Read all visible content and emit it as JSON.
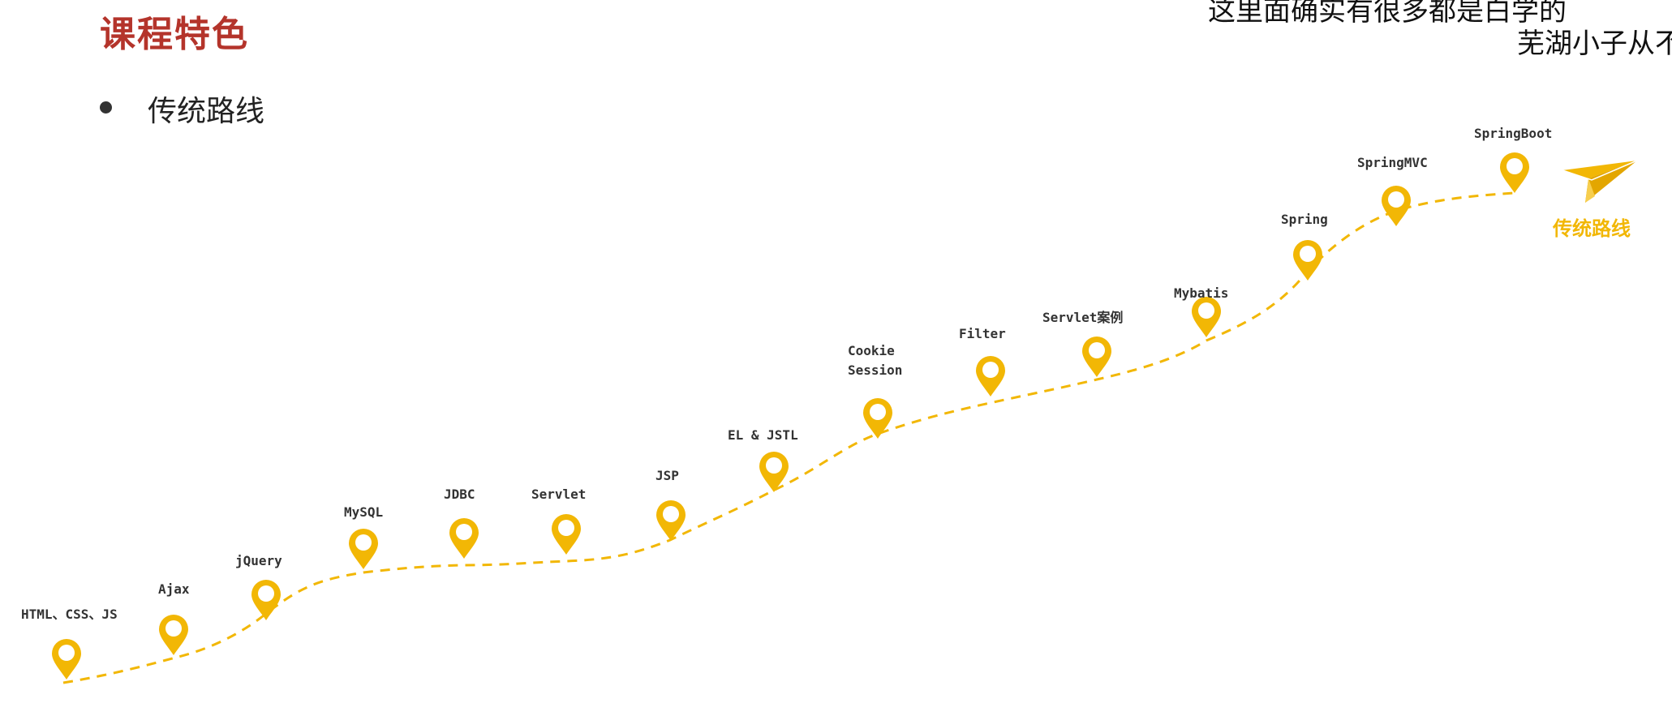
{
  "slide": {
    "title": "课程特色",
    "bullet": "传统路线"
  },
  "subtitle": {
    "line1": "这里面确实有很多都是白学的",
    "line2": "芜湖小子从不"
  },
  "roadmap": {
    "accent_color": "#F2B705",
    "milestones": [
      {
        "lines": [
          "HTML、CSS、JS"
        ]
      },
      {
        "lines": [
          "Ajax"
        ]
      },
      {
        "lines": [
          "jQuery"
        ]
      },
      {
        "lines": [
          "MySQL"
        ]
      },
      {
        "lines": [
          "JDBC"
        ]
      },
      {
        "lines": [
          "Servlet"
        ]
      },
      {
        "lines": [
          "JSP"
        ]
      },
      {
        "lines": [
          "EL & JSTL"
        ]
      },
      {
        "lines": [
          "Cookie",
          "Session"
        ]
      },
      {
        "lines": [
          "Filter"
        ]
      },
      {
        "lines": [
          "Servlet案例"
        ]
      },
      {
        "lines": [
          "Mybatis"
        ]
      },
      {
        "lines": [
          "Spring"
        ]
      },
      {
        "lines": [
          "SpringMVC"
        ]
      },
      {
        "lines": [
          "SpringBoot"
        ]
      }
    ],
    "end_icon": "paper-plane-icon",
    "end_label": "传统路线"
  }
}
